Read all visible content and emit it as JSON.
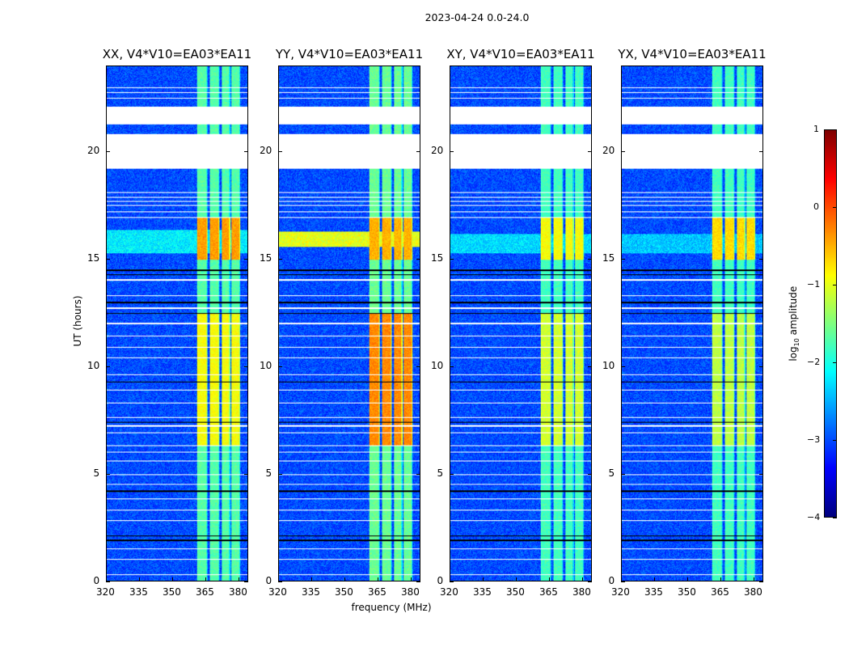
{
  "suptitle": "2023-04-24 0.0-24.0",
  "chart_data": {
    "type": "heatmap",
    "title": "2023-04-24 0.0-24.0",
    "xlabel": "frequency (MHz)",
    "ylabel": "UT (hours)",
    "xlim": [
      320,
      384.4
    ],
    "ylim": [
      0,
      24
    ],
    "xticks": [
      320,
      335,
      350,
      365,
      380
    ],
    "yticks": [
      0,
      5,
      10,
      15,
      20
    ],
    "colorbar": {
      "label_main": "log",
      "label_sub": "10",
      "label_rest": " amplitude",
      "range": [
        -4,
        1
      ],
      "ticks": [
        1,
        0,
        -1,
        -2,
        -3,
        -4
      ],
      "tick_labels": [
        "1",
        "0",
        "−1",
        "−2",
        "−3",
        "−4"
      ],
      "colormap": "jet"
    },
    "baseline_log_amplitude": -3.0,
    "subbands_mhz": [
      [
        361,
        366
      ],
      [
        367,
        371.5
      ],
      [
        372.5,
        376.5
      ],
      [
        377,
        381
      ]
    ],
    "flagged_hours": [
      [
        21.3,
        22.15
      ],
      [
        19.25,
        20.85
      ],
      [
        23.0,
        23.04
      ],
      [
        22.78,
        22.82
      ],
      [
        22.5,
        22.54
      ],
      [
        18.1,
        18.14
      ],
      [
        17.9,
        17.94
      ],
      [
        17.7,
        17.73
      ],
      [
        17.5,
        17.53
      ],
      [
        17.2,
        17.24
      ],
      [
        16.95,
        16.98
      ],
      [
        14.0,
        14.1
      ],
      [
        13.3,
        13.33
      ],
      [
        12.7,
        12.76
      ],
      [
        12.0,
        12.04
      ],
      [
        11.7,
        11.73
      ],
      [
        11.4,
        11.44
      ],
      [
        10.9,
        10.93
      ],
      [
        10.4,
        10.43
      ],
      [
        9.6,
        9.64
      ],
      [
        8.9,
        8.93
      ],
      [
        8.3,
        8.34
      ],
      [
        7.6,
        7.64
      ],
      [
        7.2,
        7.28
      ],
      [
        6.9,
        6.95
      ],
      [
        6.3,
        6.33
      ],
      [
        6.0,
        6.04
      ],
      [
        5.6,
        5.64
      ],
      [
        4.95,
        4.99
      ],
      [
        4.5,
        4.54
      ],
      [
        3.8,
        3.84
      ],
      [
        3.3,
        3.33
      ],
      [
        2.8,
        2.84
      ],
      [
        1.5,
        1.54
      ],
      [
        1.0,
        1.03
      ],
      [
        0.3,
        0.33
      ]
    ],
    "dark_lines_hours": [
      20.2,
      19.3,
      14.5,
      14.3,
      13.0,
      12.5,
      9.3,
      7.4,
      4.2,
      2.1,
      1.9
    ],
    "panels": [
      {
        "title": "XX, V4*V10=EA03*EA11",
        "band_levels": [
          {
            "from": 6.3,
            "to": 12.5,
            "level": -0.9
          },
          {
            "from": 15.0,
            "to": 17.0,
            "level": -0.4
          }
        ],
        "band_default": -1.7,
        "baseline_boost": [
          15.3,
          16.4,
          -2.2
        ]
      },
      {
        "title": "YY, V4*V10=EA03*EA11",
        "band_levels": [
          {
            "from": 6.3,
            "to": 12.5,
            "level": -0.3
          },
          {
            "from": 15.0,
            "to": 17.0,
            "level": -0.5
          }
        ],
        "band_default": -1.6,
        "baseline_boost": [
          15.6,
          16.3,
          -1.0
        ]
      },
      {
        "title": "XY, V4*V10=EA03*EA11",
        "band_levels": [
          {
            "from": 6.3,
            "to": 12.5,
            "level": -1.1
          },
          {
            "from": 15.0,
            "to": 17.0,
            "level": -0.9
          }
        ],
        "band_default": -1.8,
        "baseline_boost": [
          15.3,
          16.2,
          -2.3
        ]
      },
      {
        "title": "YX, V4*V10=EA03*EA11",
        "band_levels": [
          {
            "from": 6.3,
            "to": 12.5,
            "level": -1.2
          },
          {
            "from": 15.0,
            "to": 17.0,
            "level": -0.7
          }
        ],
        "band_default": -1.8,
        "baseline_boost": [
          15.3,
          16.2,
          -2.4
        ]
      }
    ]
  }
}
